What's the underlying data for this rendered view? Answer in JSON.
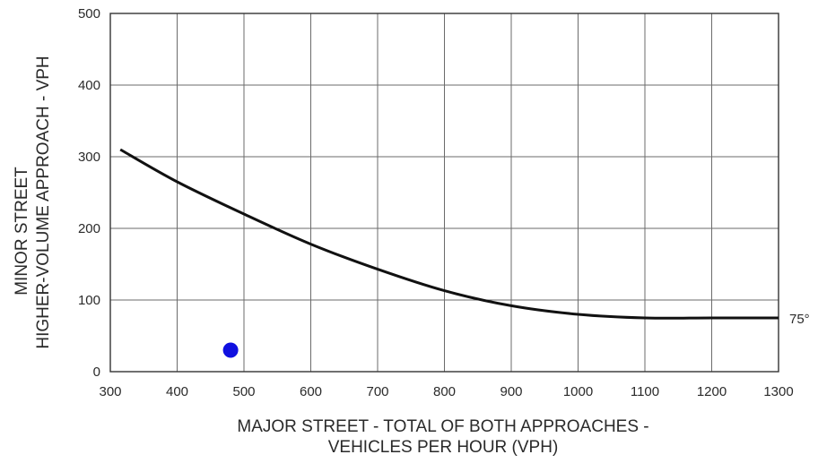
{
  "chart_data": {
    "type": "line",
    "title": "",
    "xlabel_lines": [
      "MAJOR STREET - TOTAL OF BOTH APPROACHES -",
      "VEHICLES PER HOUR (VPH)"
    ],
    "ylabel_lines": [
      "MINOR STREET",
      "HIGHER-VOLUME APPROACH - VPH"
    ],
    "xlim": [
      300,
      1300
    ],
    "ylim": [
      0,
      500
    ],
    "x_ticks": [
      300,
      400,
      500,
      600,
      700,
      800,
      900,
      1000,
      1100,
      1200,
      1300
    ],
    "y_ticks": [
      0,
      100,
      200,
      300,
      400,
      500
    ],
    "grid": true,
    "series": [
      {
        "label": "75°",
        "color": "#111111",
        "x": [
          315,
          400,
          500,
          600,
          700,
          800,
          900,
          1000,
          1100,
          1200,
          1300
        ],
        "y": [
          310,
          265,
          220,
          178,
          143,
          113,
          92,
          80,
          75,
          75,
          75
        ]
      }
    ],
    "points": [
      {
        "x": 480,
        "y": 30,
        "color": "#1010e0"
      }
    ]
  }
}
